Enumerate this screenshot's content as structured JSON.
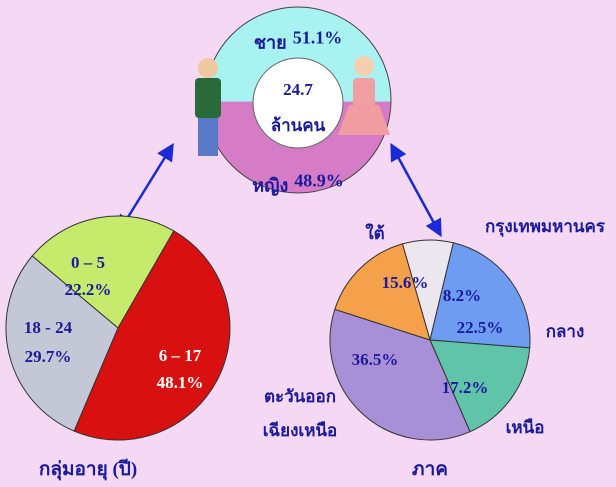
{
  "chart_data": [
    {
      "type": "split-circle",
      "categories": [
        "ชาย",
        "หญิง"
      ],
      "values": [
        51.1,
        48.9
      ],
      "value_labels": [
        "51.1%",
        "48.9%"
      ],
      "colors": [
        "#a8f2f2",
        "#d67cc6"
      ],
      "total": 24.7,
      "total_unit": "ล้านคน"
    },
    {
      "type": "pie",
      "title": "กลุ่มอายุ (ปี)",
      "categories": [
        "0 – 5",
        "6 – 17",
        "18 - 24"
      ],
      "values": [
        22.2,
        48.1,
        29.7
      ],
      "value_labels": [
        "22.2%",
        "48.1%",
        "29.7%"
      ],
      "colors": [
        "#c6ea6c",
        "#d81010",
        "#c4c8d6"
      ]
    },
    {
      "type": "pie",
      "title": "ภาค",
      "categories": [
        "กรุงเทพมหานคร",
        "กลาง",
        "เหนือ",
        "ตะวันออก\nเฉียงเหนือ",
        "ใต้"
      ],
      "values": [
        8.2,
        22.5,
        17.2,
        36.5,
        15.6
      ],
      "value_labels": [
        "8.2%",
        "22.5%",
        "17.2%",
        "36.5%",
        "15.6%"
      ],
      "colors": [
        "#ece6ee",
        "#6e9cf0",
        "#5fc4a8",
        "#a890d8",
        "#f5a04a"
      ]
    }
  ]
}
